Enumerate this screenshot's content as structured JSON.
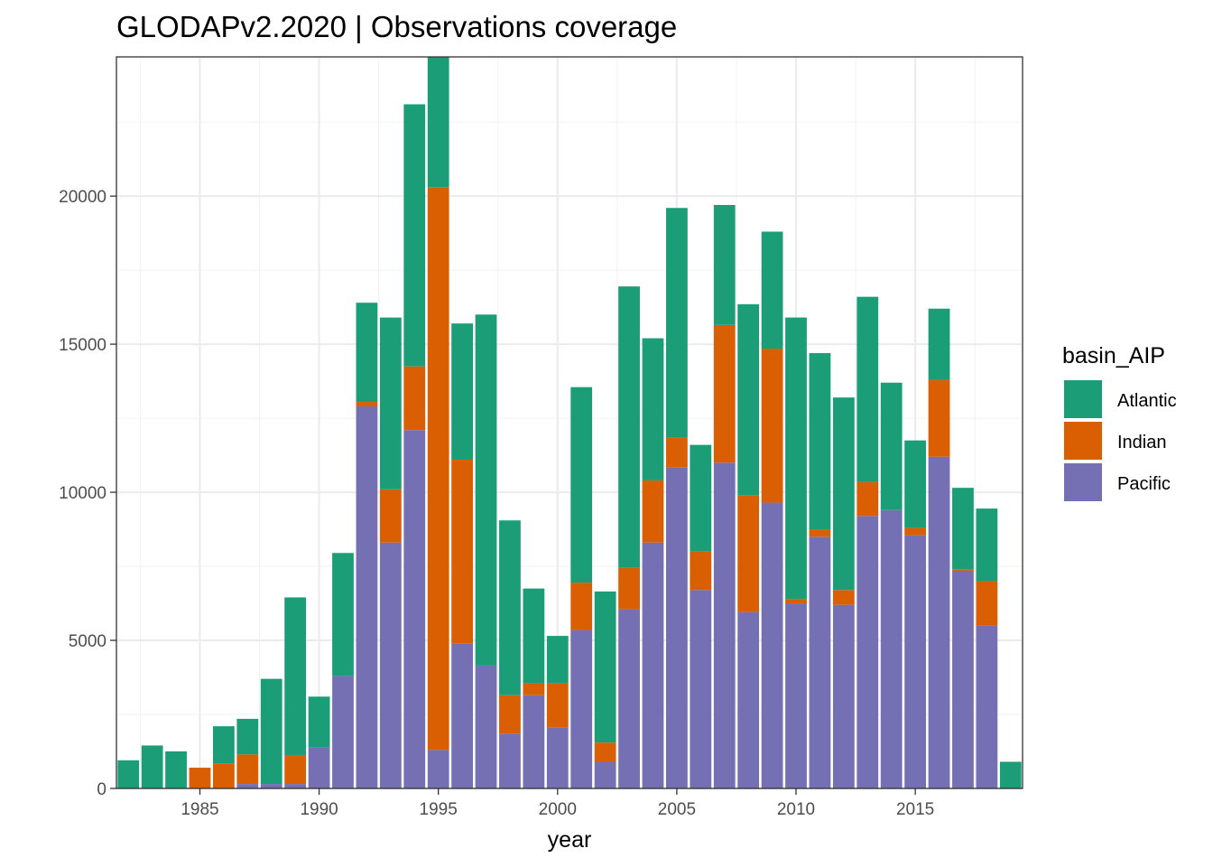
{
  "chart_data": {
    "type": "bar",
    "stacked": true,
    "title": "GLODAPv2.2020 | Observations coverage",
    "xlabel": "year",
    "ylabel": "",
    "x_ticks": [
      1985,
      1990,
      1995,
      2000,
      2005,
      2010,
      2015
    ],
    "y_ticks": [
      0,
      5000,
      10000,
      15000,
      20000
    ],
    "xlim": [
      1981.5,
      2019.5
    ],
    "ylim": [
      0,
      24700
    ],
    "grid": true,
    "legend": {
      "title": "basin_AIP",
      "position": "right",
      "entries": [
        "Atlantic",
        "Indian",
        "Pacific"
      ]
    },
    "colors": {
      "Atlantic": "#1b9e77",
      "Indian": "#d95f02",
      "Pacific": "#7570b3"
    },
    "years": [
      1982,
      1983,
      1984,
      1985,
      1986,
      1987,
      1988,
      1989,
      1990,
      1991,
      1992,
      1993,
      1994,
      1995,
      1996,
      1997,
      1998,
      1999,
      2000,
      2001,
      2002,
      2003,
      2004,
      2005,
      2006,
      2007,
      2008,
      2009,
      2010,
      2011,
      2012,
      2013,
      2014,
      2015,
      2016,
      2017,
      2018,
      2019
    ],
    "series": [
      {
        "name": "Pacific",
        "values": [
          0,
          0,
          0,
          0,
          0,
          150,
          150,
          150,
          1400,
          3800,
          12900,
          8300,
          12100,
          1300,
          4900,
          4150,
          1850,
          3150,
          2050,
          5350,
          900,
          6050,
          8300,
          10850,
          6700,
          11000,
          5950,
          9650,
          6250,
          8500,
          6200,
          9200,
          9400,
          8550,
          11200,
          7350,
          5500,
          0
        ]
      },
      {
        "name": "Indian",
        "values": [
          0,
          0,
          0,
          700,
          850,
          1000,
          0,
          950,
          0,
          0,
          150,
          1800,
          2150,
          19000,
          6200,
          0,
          1300,
          400,
          1500,
          1600,
          650,
          1400,
          2100,
          1000,
          1300,
          4650,
          3950,
          5200,
          150,
          250,
          500,
          1150,
          0,
          250,
          2600,
          50,
          1500,
          0
        ]
      },
      {
        "name": "Atlantic",
        "values": [
          950,
          1450,
          1250,
          0,
          1250,
          1200,
          3550,
          5350,
          1700,
          4150,
          3350,
          5800,
          8850,
          4400,
          4600,
          11850,
          5900,
          3200,
          1600,
          6600,
          5100,
          9500,
          4800,
          7750,
          3600,
          4050,
          6450,
          3950,
          9500,
          5950,
          6500,
          6250,
          4300,
          2950,
          2400,
          2750,
          2450,
          900
        ]
      }
    ]
  }
}
